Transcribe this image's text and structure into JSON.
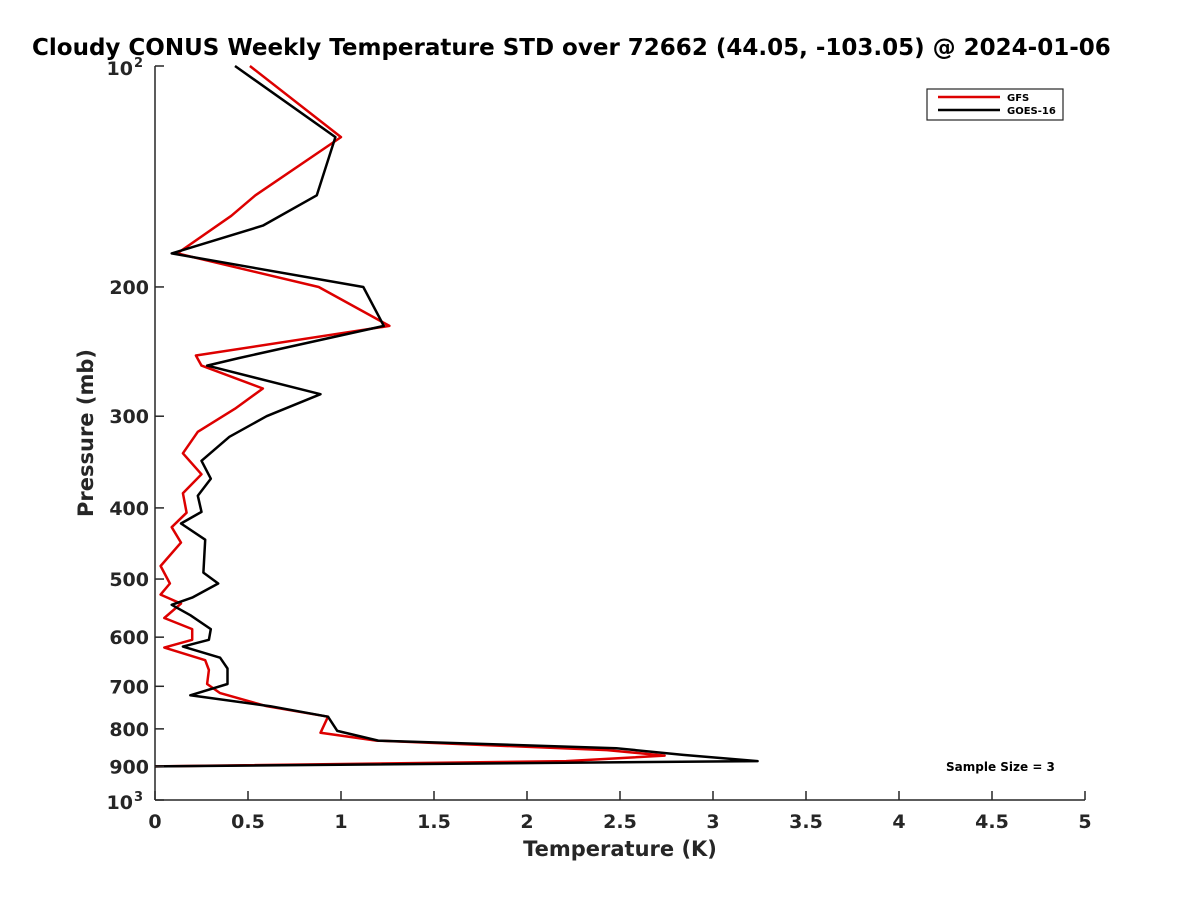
{
  "chart_data": {
    "type": "line",
    "title": "Cloudy CONUS Weekly Temperature STD over 72662 (44.05, -103.05) @ 2024-01-06",
    "xlabel": "Temperature (K)",
    "ylabel": "Pressure (mb)",
    "xlim": [
      0,
      5
    ],
    "ylim": [
      100,
      1000
    ],
    "y_scale": "log",
    "y_reversed": true,
    "x_ticks": [
      0,
      0.5,
      1,
      1.5,
      2,
      2.5,
      3,
      3.5,
      4,
      4.5,
      5
    ],
    "x_tick_labels": [
      "0",
      "0.5",
      "1",
      "1.5",
      "2",
      "2.5",
      "3",
      "3.5",
      "4",
      "4.5",
      "5"
    ],
    "y_ticks": [
      {
        "value": 100,
        "label": "10",
        "sup": "2"
      },
      {
        "value": 200,
        "label": "200",
        "sup": ""
      },
      {
        "value": 300,
        "label": "300",
        "sup": ""
      },
      {
        "value": 400,
        "label": "400",
        "sup": ""
      },
      {
        "value": 500,
        "label": "500",
        "sup": ""
      },
      {
        "value": 600,
        "label": "600",
        "sup": ""
      },
      {
        "value": 700,
        "label": "700",
        "sup": ""
      },
      {
        "value": 800,
        "label": "800",
        "sup": ""
      },
      {
        "value": 900,
        "label": "900",
        "sup": ""
      },
      {
        "value": 1000,
        "label": "10",
        "sup": "3"
      }
    ],
    "grid": false,
    "legend_position": "top-right",
    "annotation": "Sample Size = 3",
    "series": [
      {
        "name": "GFS",
        "color": "#dd0000",
        "points": [
          [
            0.51,
            100
          ],
          [
            1.0,
            125
          ],
          [
            0.54,
            150
          ],
          [
            0.41,
            160
          ],
          [
            0.12,
            180
          ],
          [
            0.88,
            200
          ],
          [
            1.26,
            226
          ],
          [
            0.22,
            248
          ],
          [
            0.25,
            256
          ],
          [
            0.58,
            275
          ],
          [
            0.43,
            293
          ],
          [
            0.23,
            315
          ],
          [
            0.15,
            337
          ],
          [
            0.25,
            360
          ],
          [
            0.15,
            382
          ],
          [
            0.17,
            406
          ],
          [
            0.09,
            425
          ],
          [
            0.14,
            446
          ],
          [
            0.03,
            480
          ],
          [
            0.08,
            507
          ],
          [
            0.03,
            525
          ],
          [
            0.14,
            540
          ],
          [
            0.05,
            565
          ],
          [
            0.2,
            585
          ],
          [
            0.2,
            605
          ],
          [
            0.05,
            620
          ],
          [
            0.27,
            645
          ],
          [
            0.29,
            665
          ],
          [
            0.28,
            695
          ],
          [
            0.35,
            715
          ],
          [
            0.6,
            745
          ],
          [
            0.93,
            770
          ],
          [
            0.89,
            810
          ],
          [
            1.19,
            830
          ],
          [
            2.43,
            855
          ],
          [
            2.74,
            870
          ],
          [
            2.21,
            885
          ],
          [
            0.0,
            900
          ]
        ]
      },
      {
        "name": "GOES-16",
        "color": "#000000",
        "points": [
          [
            0.43,
            100
          ],
          [
            0.97,
            125
          ],
          [
            0.87,
            150
          ],
          [
            0.58,
            165
          ],
          [
            0.09,
            180
          ],
          [
            1.12,
            200
          ],
          [
            1.23,
            226
          ],
          [
            0.45,
            250
          ],
          [
            0.28,
            256
          ],
          [
            0.89,
            280
          ],
          [
            0.6,
            300
          ],
          [
            0.4,
            320
          ],
          [
            0.25,
            345
          ],
          [
            0.3,
            365
          ],
          [
            0.23,
            385
          ],
          [
            0.25,
            405
          ],
          [
            0.14,
            420
          ],
          [
            0.27,
            442
          ],
          [
            0.26,
            490
          ],
          [
            0.34,
            507
          ],
          [
            0.2,
            530
          ],
          [
            0.09,
            542
          ],
          [
            0.19,
            560
          ],
          [
            0.3,
            585
          ],
          [
            0.29,
            605
          ],
          [
            0.15,
            618
          ],
          [
            0.35,
            640
          ],
          [
            0.39,
            662
          ],
          [
            0.39,
            695
          ],
          [
            0.19,
            720
          ],
          [
            0.62,
            745
          ],
          [
            0.93,
            770
          ],
          [
            0.98,
            805
          ],
          [
            1.2,
            830
          ],
          [
            2.48,
            850
          ],
          [
            2.84,
            868
          ],
          [
            3.24,
            885
          ],
          [
            0.0,
            900
          ]
        ]
      }
    ]
  }
}
